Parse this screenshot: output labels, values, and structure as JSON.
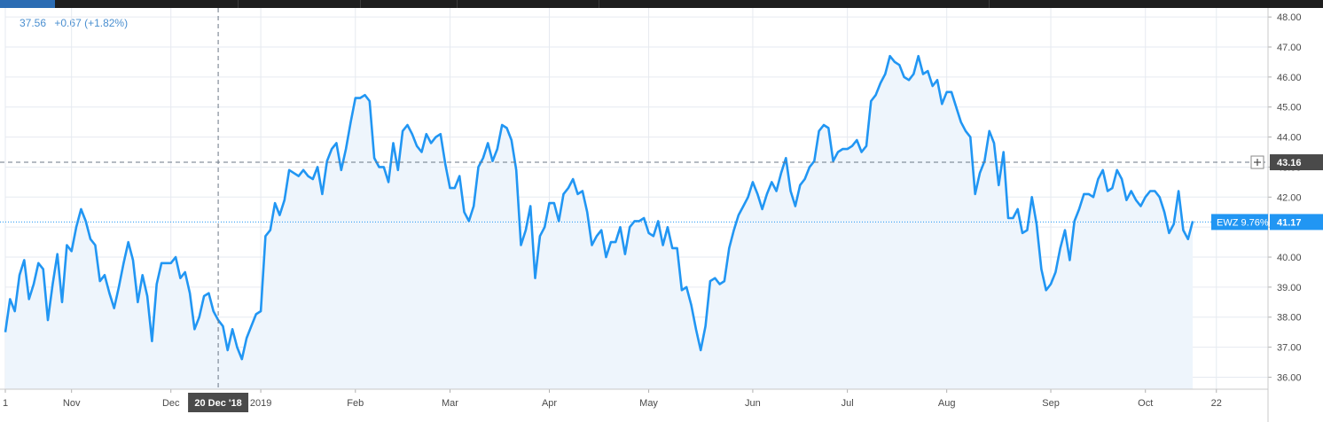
{
  "legend": {
    "last_value": "37.56",
    "change": "+0.67 (+1.82%)"
  },
  "crosshair": {
    "date_label": "20 Dec '18",
    "price_label": "43.16",
    "date_index": 45,
    "price": 43.16
  },
  "last_price": {
    "symbol_label": "EWZ 9.76%",
    "value_label": "41.17",
    "price": 41.17
  },
  "colors": {
    "line": "#2196f3",
    "area": "#eef5fc",
    "grid": "#e6eaf0",
    "axis_text": "#4a4a4a",
    "price_tag": "#2196f3",
    "crosshair_tag": "#4a4a4a"
  },
  "chart_data": {
    "type": "area",
    "title": "",
    "ylim": [
      35.6,
      48.3
    ],
    "yticks": [
      36.0,
      37.0,
      38.0,
      39.0,
      40.0,
      41.0,
      42.0,
      43.0,
      44.0,
      45.0,
      46.0,
      47.0,
      48.0
    ],
    "ytick_labels": [
      "36.00",
      "37.00",
      "38.00",
      "39.00",
      "40.00",
      "",
      "42.00",
      "43.00",
      "44.00",
      "45.00",
      "46.00",
      "47.00",
      "48.00"
    ],
    "grid": true,
    "x_tick_labels": [
      {
        "label": "1",
        "index": 0
      },
      {
        "label": "Nov",
        "index": 14
      },
      {
        "label": "Dec",
        "index": 35
      },
      {
        "label": "2019",
        "index": 54
      },
      {
        "label": "Feb",
        "index": 74
      },
      {
        "label": "Mar",
        "index": 94
      },
      {
        "label": "Apr",
        "index": 115
      },
      {
        "label": "May",
        "index": 136
      },
      {
        "label": "Jun",
        "index": 158
      },
      {
        "label": "Jul",
        "index": 178
      },
      {
        "label": "Aug",
        "index": 199
      },
      {
        "label": "Sep",
        "index": 221
      },
      {
        "label": "Oct",
        "index": 241
      },
      {
        "label": "22",
        "index": 256
      }
    ],
    "x_total": 258,
    "series": [
      {
        "values": [
          37.5,
          38.6,
          38.2,
          39.4,
          39.9,
          38.6,
          39.1,
          39.8,
          39.6,
          37.9,
          39.1,
          40.1,
          38.5,
          40.4,
          40.2,
          41.0,
          41.6,
          41.2,
          40.6,
          40.4,
          39.2,
          39.4,
          38.8,
          38.3,
          39.0,
          39.8,
          40.5,
          39.9,
          38.5,
          39.4,
          38.7,
          37.2,
          39.1,
          39.8,
          39.8,
          39.8,
          40.0,
          39.3,
          39.5,
          38.8,
          37.6,
          38.0,
          38.7,
          38.8,
          38.2,
          37.9,
          37.7,
          36.9,
          37.6,
          37.0,
          36.6,
          37.3,
          37.7,
          38.1,
          38.2,
          40.7,
          40.9,
          41.8,
          41.4,
          41.9,
          42.9,
          42.8,
          42.7,
          42.9,
          42.7,
          42.6,
          43.0,
          42.1,
          43.2,
          43.6,
          43.8,
          42.9,
          43.6,
          44.5,
          45.3,
          45.3,
          45.4,
          45.2,
          43.3,
          43.0,
          43.0,
          42.5,
          43.8,
          42.9,
          44.2,
          44.4,
          44.1,
          43.7,
          43.5,
          44.1,
          43.8,
          44.0,
          44.1,
          43.1,
          42.3,
          42.3,
          42.7,
          41.5,
          41.2,
          41.7,
          43.0,
          43.3,
          43.8,
          43.2,
          43.6,
          44.4,
          44.3,
          43.9,
          42.9,
          40.4,
          40.9,
          41.7,
          39.3,
          40.7,
          41.0,
          41.8,
          41.8,
          41.2,
          42.1,
          42.3,
          42.6,
          42.1,
          42.2,
          41.5,
          40.4,
          40.7,
          40.9,
          40.0,
          40.5,
          40.5,
          41.0,
          40.1,
          41.0,
          41.2,
          41.2,
          41.3,
          40.8,
          40.7,
          41.2,
          40.4,
          41.0,
          40.3,
          40.3,
          38.9,
          39.0,
          38.4,
          37.6,
          36.9,
          37.7,
          39.2,
          39.3,
          39.1,
          39.2,
          40.3,
          40.9,
          41.4,
          41.7,
          42.0,
          42.5,
          42.1,
          41.6,
          42.1,
          42.5,
          42.2,
          42.8,
          43.3,
          42.2,
          41.7,
          42.4,
          42.6,
          43.0,
          43.2,
          44.2,
          44.4,
          44.3,
          43.2,
          43.5,
          43.6,
          43.6,
          43.7,
          43.9,
          43.5,
          43.7,
          45.2,
          45.4,
          45.8,
          46.1,
          46.7,
          46.5,
          46.4,
          46.0,
          45.9,
          46.1,
          46.7,
          46.1,
          46.2,
          45.7,
          45.9,
          45.1,
          45.5,
          45.5,
          45.0,
          44.5,
          44.2,
          44.0,
          42.1,
          42.8,
          43.2,
          44.2,
          43.8,
          42.4,
          43.5,
          41.3,
          41.3,
          41.6,
          40.8,
          40.9,
          42.0,
          41.1,
          39.6,
          38.9,
          39.1,
          39.5,
          40.3,
          40.9,
          39.9,
          41.2,
          41.6,
          42.1,
          42.1,
          42.0,
          42.6,
          42.9,
          42.2,
          42.3,
          42.9,
          42.6,
          41.9,
          42.2,
          41.9,
          41.7,
          42.0,
          42.2,
          42.2,
          42.0,
          41.5,
          40.8,
          41.1,
          42.2,
          40.9,
          40.6,
          41.2
        ]
      }
    ]
  }
}
